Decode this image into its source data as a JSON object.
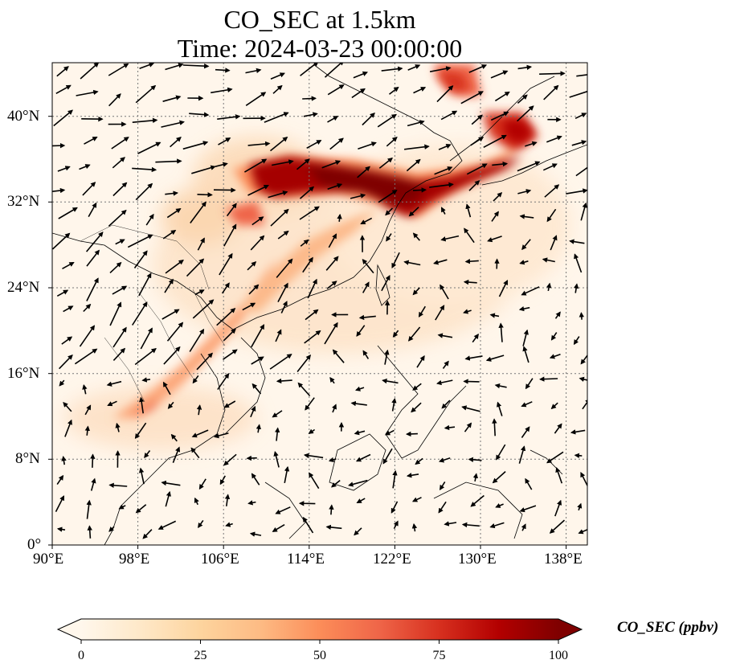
{
  "title_line1": "CO_SEC at 1.5km",
  "title_line2": "Time: 2024-03-23 00:00:00",
  "map": {
    "lon_ticks": [
      "90°E",
      "98°E",
      "106°E",
      "114°E",
      "122°E",
      "130°E",
      "138°E"
    ],
    "lat_ticks": [
      "0°",
      "8°N",
      "16°N",
      "24°N",
      "32°N",
      "40°N"
    ],
    "extent": {
      "lon": [
        90,
        140
      ],
      "lat": [
        0,
        45
      ]
    },
    "gridlines": "dotted"
  },
  "colorbar": {
    "label": "CO_SEC (ppbv)",
    "ticks": [
      "0",
      "25",
      "50",
      "75",
      "100"
    ],
    "colormap": "OrRd",
    "range": [
      0,
      100
    ],
    "extend": "both",
    "colors": [
      "#fff7ec",
      "#fee8c8",
      "#fdd49e",
      "#fdbb84",
      "#fc8d59",
      "#ef6548",
      "#d7301f",
      "#b30000",
      "#7f0000"
    ]
  }
}
